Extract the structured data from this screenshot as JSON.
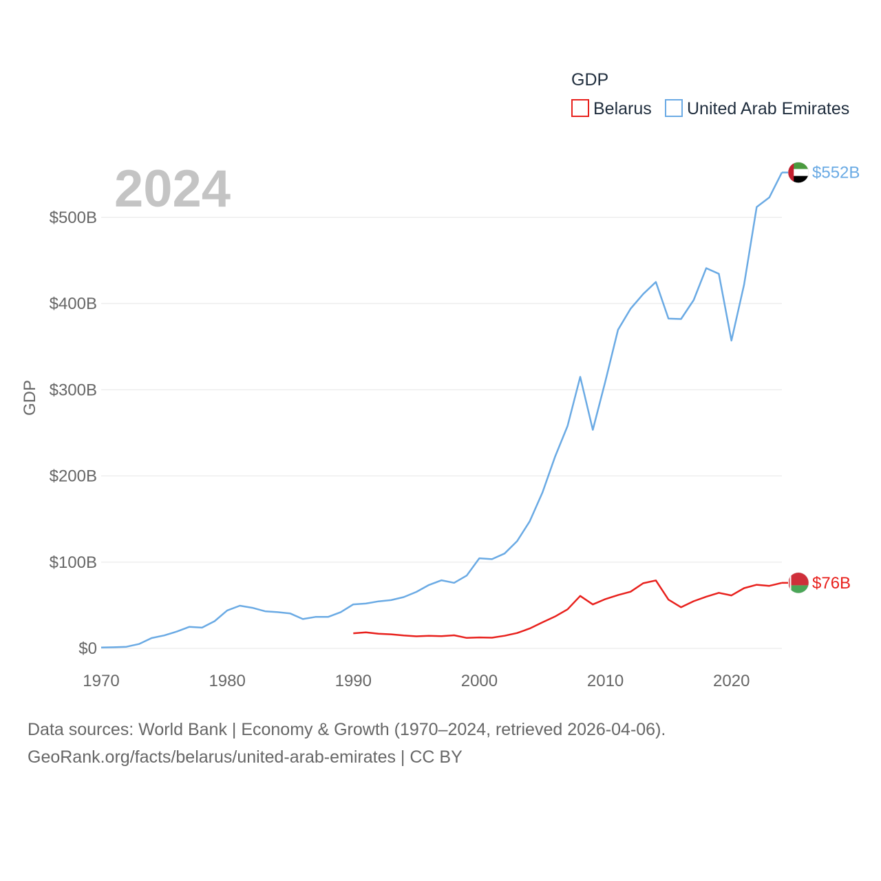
{
  "chart_data": {
    "type": "line",
    "title": "",
    "xlabel": "",
    "ylabel": "GDP",
    "year_label": "2024",
    "xlim": [
      1970,
      2024
    ],
    "ylim": [
      0,
      552
    ],
    "x_ticks": [
      {
        "value": 1970,
        "label": "1970"
      },
      {
        "value": 1980,
        "label": "1980"
      },
      {
        "value": 1990,
        "label": "1990"
      },
      {
        "value": 2000,
        "label": "2000"
      },
      {
        "value": 2010,
        "label": "2010"
      },
      {
        "value": 2020,
        "label": "2020"
      }
    ],
    "y_ticks": [
      {
        "value": 0,
        "label": "$0"
      },
      {
        "value": 100,
        "label": "$100B"
      },
      {
        "value": 200,
        "label": "$200B"
      },
      {
        "value": 300,
        "label": "$300B"
      },
      {
        "value": 400,
        "label": "$400B"
      },
      {
        "value": 500,
        "label": "$500B"
      }
    ],
    "legend": {
      "title": "GDP",
      "position": "top-right",
      "entries": [
        "Belarus",
        "United Arab Emirates"
      ]
    },
    "series": [
      {
        "name": "United Arab Emirates",
        "color": "#6aaae4",
        "end_label": "$552B",
        "flag": "uae-flag",
        "x": [
          1970,
          1971,
          1972,
          1973,
          1974,
          1975,
          1976,
          1977,
          1978,
          1979,
          1980,
          1981,
          1982,
          1983,
          1984,
          1985,
          1986,
          1987,
          1988,
          1989,
          1990,
          1991,
          1992,
          1993,
          1994,
          1995,
          1996,
          1997,
          1998,
          1999,
          2000,
          2001,
          2002,
          2003,
          2004,
          2005,
          2006,
          2007,
          2008,
          2009,
          2010,
          2011,
          2012,
          2013,
          2014,
          2015,
          2016,
          2017,
          2018,
          2019,
          2020,
          2021,
          2022,
          2023,
          2024
        ],
        "values": [
          1,
          1.3,
          1.8,
          5,
          12,
          15,
          19.5,
          25,
          24,
          31.5,
          44,
          49.5,
          47,
          43,
          42,
          40.5,
          34,
          36.5,
          36.5,
          42,
          51,
          52,
          54.5,
          56,
          59.5,
          65.5,
          73.5,
          79,
          76,
          84.5,
          104.5,
          103.5,
          110,
          124.5,
          147.5,
          180.5,
          222,
          258,
          315,
          253.5,
          310,
          369.5,
          394,
          411,
          425,
          382.5,
          382,
          404,
          441,
          434.5,
          357,
          422,
          512,
          523,
          552
        ]
      },
      {
        "name": "Belarus",
        "color": "#e8201c",
        "end_label": "$76B",
        "flag": "belarus-flag",
        "x": [
          1990,
          1991,
          1992,
          1993,
          1994,
          1995,
          1996,
          1997,
          1998,
          1999,
          2000,
          2001,
          2002,
          2003,
          2004,
          2005,
          2006,
          2007,
          2008,
          2009,
          2010,
          2011,
          2012,
          2013,
          2014,
          2015,
          2016,
          2017,
          2018,
          2019,
          2020,
          2021,
          2022,
          2023,
          2024
        ],
        "values": [
          17.5,
          18.5,
          17,
          16.3,
          14.9,
          14,
          14.5,
          14.1,
          15.2,
          12.1,
          12.7,
          12.4,
          14.6,
          17.8,
          23.1,
          30.2,
          36.9,
          45.3,
          60.8,
          50.9,
          57.2,
          61.8,
          65.7,
          75.5,
          78.8,
          56.5,
          47.7,
          54.7,
          60,
          64.4,
          61.4,
          69.9,
          73.8,
          72.5,
          76
        ]
      }
    ]
  },
  "footer": {
    "line1": "Data sources: World Bank | Economy & Growth (1970–2024, retrieved 2026-04-06).",
    "line2": "GeoRank.org/facts/belarus/united-arab-emirates | CC BY"
  }
}
